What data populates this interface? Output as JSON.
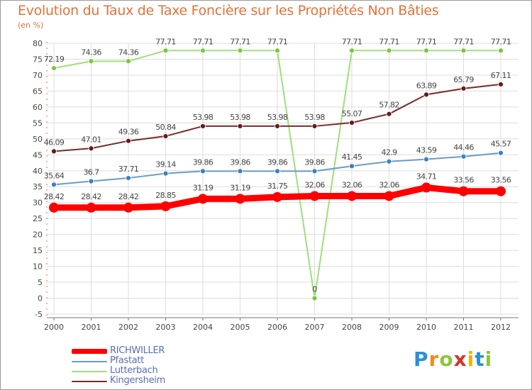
{
  "title": "Evolution du Taux de Taxe Foncière sur les Propriétés Non Bâties",
  "subtitle": "(en %)",
  "logo": {
    "letters": [
      "P",
      "r",
      "o",
      "x",
      "i",
      "t",
      "i"
    ],
    "colors": [
      "#2a8fd6",
      "#f08a1c",
      "#8cc63e",
      "#d8322a",
      "#f0b400",
      "#2a8fd6",
      "#8cc63e"
    ]
  },
  "chart_data": {
    "type": "line",
    "title": "Evolution du Taux de Taxe Foncière sur les Propriétés Non Bâties",
    "ylabel": "(en %)",
    "xlabel": "",
    "ylim": [
      -5,
      80
    ],
    "yticks": [
      "-5",
      "0",
      "5",
      "10",
      "15",
      "20",
      "25",
      "30",
      "35",
      "40",
      "45",
      "50",
      "55",
      "60",
      "65",
      "70",
      "75",
      "80"
    ],
    "categories": [
      "2000",
      "2001",
      "2002",
      "2003",
      "2004",
      "2005",
      "2006",
      "2007",
      "2008",
      "2009",
      "2010",
      "2011",
      "2012"
    ],
    "grid": true,
    "legend_position": "bottom-left",
    "series": [
      {
        "name": "RICHWILLER",
        "color": "#ff0000",
        "values": [
          28.42,
          28.42,
          28.42,
          28.85,
          31.19,
          31.19,
          31.75,
          32.06,
          32.06,
          32.06,
          34.71,
          33.56,
          33.56
        ],
        "labels": [
          "28.42",
          "28.42",
          "28.42",
          "28.85",
          "31.19",
          "31.19",
          "31.75",
          "32.06",
          "32.06",
          "32.06",
          "34.71",
          "33.56",
          "33.56"
        ]
      },
      {
        "name": "Pfastatt",
        "color": "#6a9bcb",
        "values": [
          35.64,
          36.7,
          37.71,
          39.14,
          39.86,
          39.86,
          39.86,
          39.86,
          41.45,
          42.9,
          43.59,
          44.46,
          45.57
        ],
        "labels": [
          "35.64",
          "36.7",
          "37.71",
          "39.14",
          "39.86",
          "39.86",
          "39.86",
          "39.86",
          "41.45",
          "42.9",
          "43.59",
          "44.46",
          "45.57"
        ]
      },
      {
        "name": "Lutterbach",
        "color": "#9de07a",
        "values": [
          72.19,
          74.36,
          74.36,
          77.71,
          77.71,
          77.71,
          77.71,
          0,
          77.71,
          77.71,
          77.71,
          77.71,
          77.71
        ],
        "labels": [
          "72.19",
          "74.36",
          "74.36",
          "77.71",
          "77.71",
          "77.71",
          "77.71",
          "0",
          "77.71",
          "77.71",
          "77.71",
          "77.71",
          "77.71"
        ]
      },
      {
        "name": "Kingersheim",
        "color": "#7a2a2a",
        "values": [
          46.09,
          47.01,
          49.36,
          50.84,
          53.98,
          53.98,
          53.98,
          53.98,
          55.07,
          57.82,
          63.89,
          65.79,
          67.11
        ],
        "labels": [
          "46.09",
          "47.01",
          "49.36",
          "50.84",
          "53.98",
          "53.98",
          "53.98",
          "53.98",
          "55.07",
          "57.82",
          "63.89",
          "65.79",
          "67.11"
        ]
      }
    ]
  }
}
